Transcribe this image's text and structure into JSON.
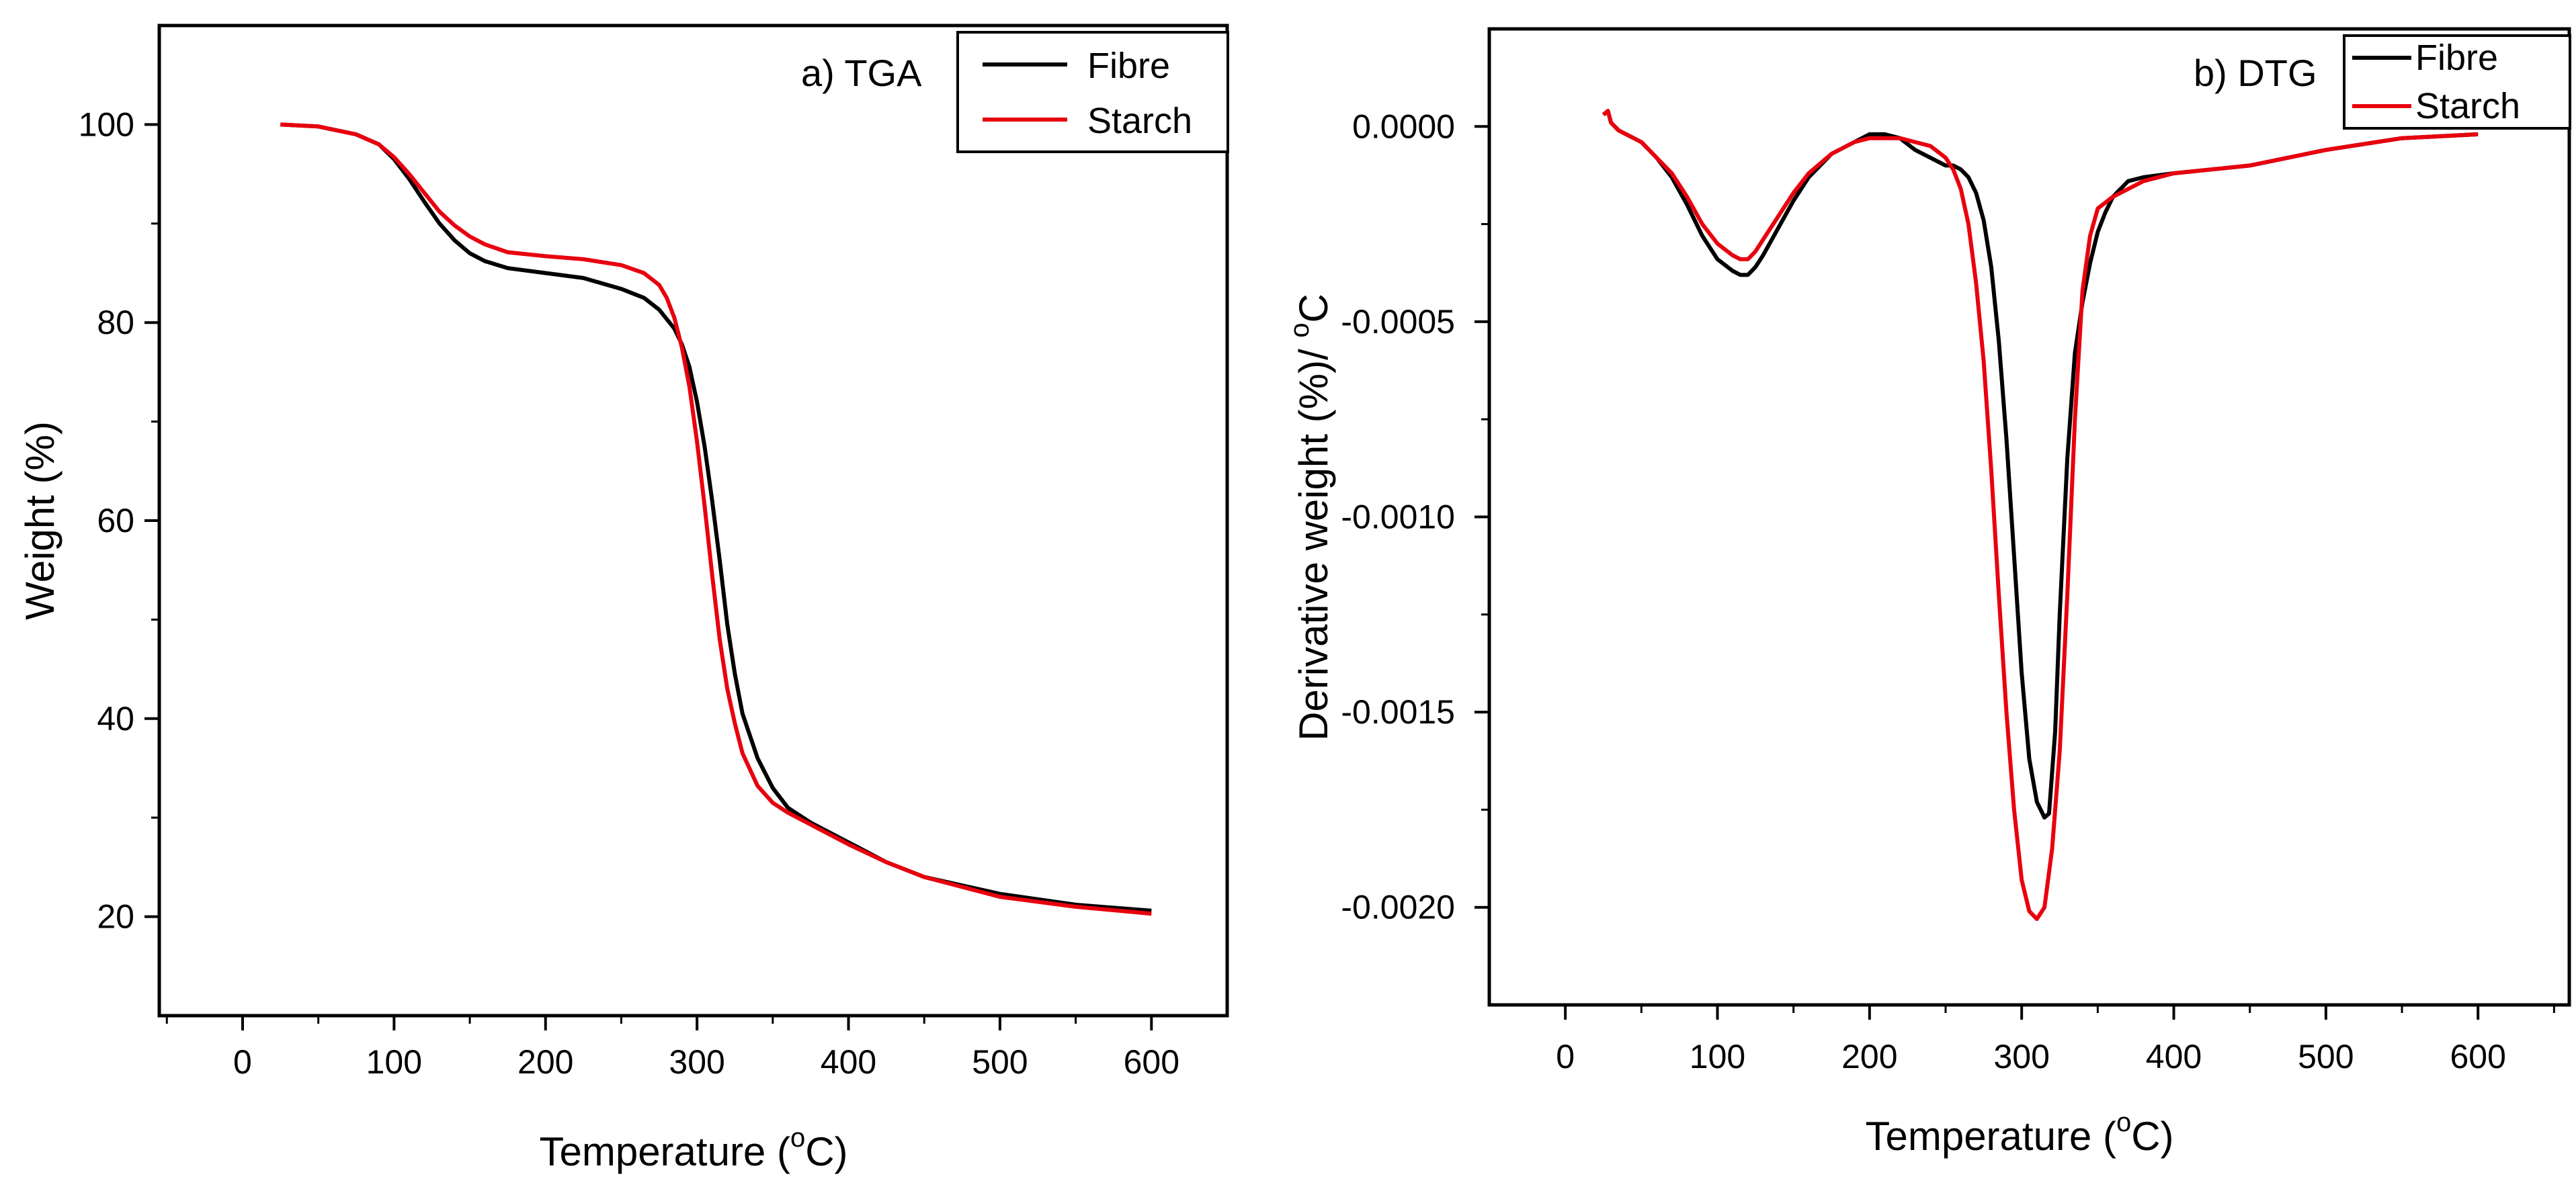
{
  "chart_data": [
    {
      "type": "line",
      "panel_label": "a) TGA",
      "xlabel": "Temperature (°C)",
      "xlabel_main": "Temperature (",
      "xlabel_sup": "o",
      "xlabel_end": "C)",
      "ylabel": "Weight (%)",
      "xlim": [
        -55,
        650
      ],
      "ylim": [
        10,
        110
      ],
      "x_ticks": [
        0,
        100,
        200,
        300,
        400,
        500,
        600
      ],
      "y_ticks": [
        20,
        40,
        60,
        80,
        100
      ],
      "x_tick_labels": [
        "0",
        "100",
        "200",
        "300",
        "400",
        "500",
        "600"
      ],
      "y_tick_labels": [
        "20",
        "40",
        "60",
        "80",
        "100"
      ],
      "legend_position": "top-right",
      "series": [
        {
          "name": "Fibre",
          "color": "#000000",
          "x": [
            25,
            50,
            75,
            90,
            100,
            110,
            120,
            130,
            140,
            150,
            160,
            175,
            200,
            225,
            250,
            265,
            275,
            285,
            290,
            295,
            300,
            305,
            310,
            315,
            320,
            325,
            330,
            340,
            350,
            360,
            375,
            400,
            425,
            450,
            500,
            550,
            600
          ],
          "y": [
            100,
            99.8,
            99,
            98,
            96.5,
            94.5,
            92.2,
            90,
            88.3,
            87,
            86.2,
            85.5,
            85,
            84.5,
            83.4,
            82.5,
            81.3,
            79.4,
            77.8,
            75.5,
            72,
            67.5,
            62,
            56,
            49.5,
            44.5,
            40.5,
            36,
            33,
            31,
            29.5,
            27.5,
            25.5,
            24,
            22.3,
            21.2,
            20.6
          ]
        },
        {
          "name": "Starch",
          "color": "#e8000e",
          "x": [
            25,
            50,
            75,
            90,
            100,
            110,
            120,
            130,
            140,
            150,
            160,
            175,
            200,
            225,
            250,
            265,
            275,
            280,
            285,
            290,
            295,
            300,
            305,
            310,
            315,
            320,
            325,
            330,
            340,
            350,
            360,
            375,
            400,
            425,
            450,
            500,
            550,
            600
          ],
          "y": [
            100,
            99.8,
            99,
            98,
            96.7,
            95,
            93.1,
            91.2,
            89.8,
            88.7,
            87.9,
            87.1,
            86.7,
            86.4,
            85.8,
            85,
            83.8,
            82.5,
            80.5,
            77.5,
            73.5,
            68,
            61.5,
            54.5,
            48,
            43,
            39.5,
            36.5,
            33.2,
            31.5,
            30.5,
            29.3,
            27.3,
            25.5,
            24,
            22,
            21,
            20.3
          ]
        }
      ]
    },
    {
      "type": "line",
      "panel_label": "b) DTG",
      "xlabel": "Temperature (°C)",
      "xlabel_main": "Temperature (",
      "xlabel_sup": "o",
      "xlabel_end": "C)",
      "ylabel": "Derivative weight (%)/ °C",
      "ylabel_main": "Derivative weight (%)/ ",
      "ylabel_sup": "o",
      "ylabel_end": "C",
      "xlim": [
        -50,
        660
      ],
      "ylim": [
        -0.00225,
        0.00025
      ],
      "x_ticks": [
        0,
        100,
        200,
        300,
        400,
        500,
        600
      ],
      "y_ticks": [
        0.0,
        -0.0005,
        -0.001,
        -0.0015,
        -0.002
      ],
      "x_tick_labels": [
        "0",
        "100",
        "200",
        "300",
        "400",
        "500",
        "600"
      ],
      "y_tick_labels": [
        "0.0000",
        "-0.0005",
        "-0.0010",
        "-0.0015",
        "-0.0020"
      ],
      "legend_position": "top-right",
      "series": [
        {
          "name": "Fibre",
          "color": "#000000",
          "x": [
            25,
            28,
            30,
            35,
            40,
            50,
            60,
            70,
            80,
            90,
            100,
            110,
            115,
            120,
            125,
            130,
            140,
            150,
            160,
            175,
            190,
            200,
            210,
            220,
            230,
            240,
            250,
            255,
            260,
            265,
            270,
            275,
            280,
            285,
            290,
            295,
            300,
            305,
            310,
            315,
            318,
            322,
            325,
            330,
            335,
            340,
            345,
            350,
            355,
            360,
            370,
            380,
            400,
            450,
            500,
            550,
            600
          ],
          "y": [
            3e-05,
            4e-05,
            1e-05,
            -1e-05,
            -2e-05,
            -4e-05,
            -8e-05,
            -0.00013,
            -0.0002,
            -0.00028,
            -0.00034,
            -0.00037,
            -0.00038,
            -0.00038,
            -0.00036,
            -0.00033,
            -0.00026,
            -0.00019,
            -0.00013,
            -7e-05,
            -4e-05,
            -2e-05,
            -2e-05,
            -3e-05,
            -6e-05,
            -8e-05,
            -0.0001,
            -0.0001,
            -0.00011,
            -0.00013,
            -0.00017,
            -0.00024,
            -0.00036,
            -0.00055,
            -0.0008,
            -0.0011,
            -0.0014,
            -0.00162,
            -0.00173,
            -0.00177,
            -0.00176,
            -0.00155,
            -0.00125,
            -0.00085,
            -0.00058,
            -0.00045,
            -0.00035,
            -0.00027,
            -0.00022,
            -0.00018,
            -0.00014,
            -0.00013,
            -0.00012,
            -0.0001,
            -6e-05,
            -3e-05,
            -2e-05
          ]
        },
        {
          "name": "Starch",
          "color": "#e8000e",
          "x": [
            25,
            28,
            30,
            35,
            40,
            50,
            60,
            70,
            80,
            90,
            100,
            110,
            115,
            120,
            125,
            130,
            140,
            150,
            160,
            175,
            190,
            200,
            210,
            220,
            230,
            240,
            250,
            255,
            260,
            265,
            270,
            275,
            280,
            285,
            290,
            295,
            300,
            305,
            310,
            315,
            320,
            325,
            330,
            335,
            340,
            345,
            350,
            360,
            370,
            380,
            400,
            450,
            500,
            550,
            600
          ],
          "y": [
            3e-05,
            4e-05,
            1e-05,
            -1e-05,
            -2e-05,
            -4e-05,
            -8e-05,
            -0.00012,
            -0.00018,
            -0.00025,
            -0.0003,
            -0.00033,
            -0.00034,
            -0.00034,
            -0.00032,
            -0.00029,
            -0.00023,
            -0.00017,
            -0.00012,
            -7e-05,
            -4e-05,
            -3e-05,
            -3e-05,
            -3e-05,
            -4e-05,
            -5e-05,
            -8e-05,
            -0.00011,
            -0.00016,
            -0.00025,
            -0.0004,
            -0.0006,
            -0.00088,
            -0.0012,
            -0.0015,
            -0.00175,
            -0.00193,
            -0.00201,
            -0.00203,
            -0.002,
            -0.00185,
            -0.0016,
            -0.0012,
            -0.00075,
            -0.00042,
            -0.00028,
            -0.00021,
            -0.00018,
            -0.00016,
            -0.00014,
            -0.00012,
            -0.0001,
            -6e-05,
            -3e-05,
            -2e-05
          ]
        }
      ]
    }
  ]
}
